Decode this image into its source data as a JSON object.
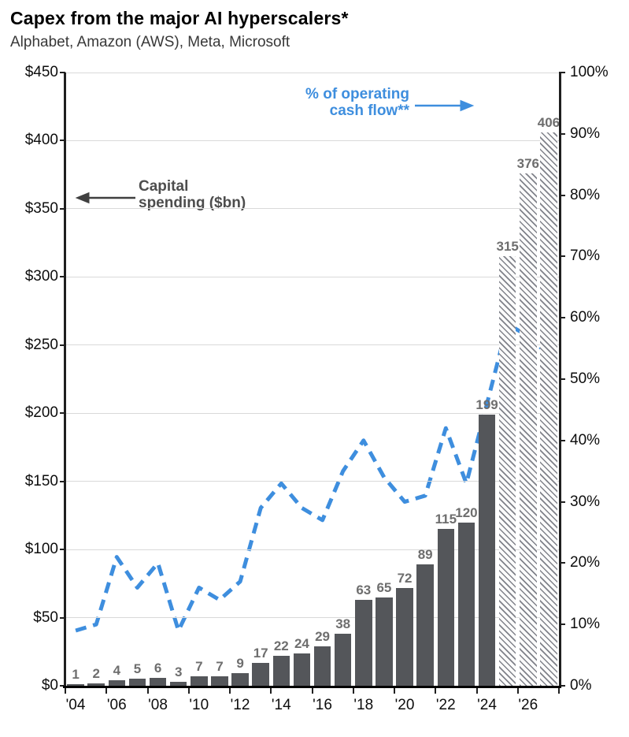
{
  "chart_data": {
    "type": "bar",
    "combo": "bar+line",
    "title": "Capex from the major AI hyperscalers*",
    "subtitle": "Alphabet, Amazon (AWS), Meta, Microsoft",
    "years": [
      2004,
      2005,
      2006,
      2007,
      2008,
      2009,
      2010,
      2011,
      2012,
      2013,
      2014,
      2015,
      2016,
      2017,
      2018,
      2019,
      2020,
      2021,
      2022,
      2023,
      2024,
      2025,
      2026,
      2027
    ],
    "x_tick_labels": [
      "'04",
      "'06",
      "'08",
      "'10",
      "'12",
      "'14",
      "'16",
      "'18",
      "'20",
      "'22",
      "'24",
      "'26"
    ],
    "bars": {
      "name": "Capital spending ($bn)",
      "values": [
        1,
        2,
        4,
        5,
        6,
        3,
        7,
        7,
        9,
        17,
        22,
        24,
        29,
        38,
        63,
        65,
        72,
        89,
        115,
        120,
        199,
        315,
        376,
        406
      ],
      "forecast_from_year": 2025,
      "color": "#54565a",
      "forecast_style": "diagonal-hatch",
      "label_color": "#6e6e6e"
    },
    "line": {
      "name": "% of operating cash flow**",
      "values": [
        9,
        10,
        21,
        16,
        20,
        9,
        16,
        14,
        17,
        29,
        33,
        29,
        27,
        35,
        40,
        34,
        30,
        31,
        42,
        33,
        46,
        59,
        57,
        54
      ],
      "color": "#3e8ede",
      "style": "dashed"
    },
    "left_axis": {
      "min": 0,
      "max": 450,
      "step": 50,
      "tick_labels": [
        "$0",
        "$50",
        "$100",
        "$150",
        "$200",
        "$250",
        "$300",
        "$350",
        "$400",
        "$450"
      ]
    },
    "right_axis": {
      "min": 0,
      "max": 100,
      "step": 10,
      "tick_labels": [
        "0%",
        "10%",
        "20%",
        "30%",
        "40%",
        "50%",
        "60%",
        "70%",
        "80%",
        "90%",
        "100%"
      ]
    },
    "annotations": {
      "capital_spending": {
        "line1": "Capital",
        "line2": "spending ($bn)",
        "color": "#4d4d4d",
        "arrow": "left"
      },
      "ocf": {
        "line1": "% of operating",
        "line2": "cash flow**",
        "color": "#3e8ede",
        "arrow": "right"
      }
    },
    "legend_position": "annotations-with-arrows",
    "grid": "horizontal-only"
  }
}
